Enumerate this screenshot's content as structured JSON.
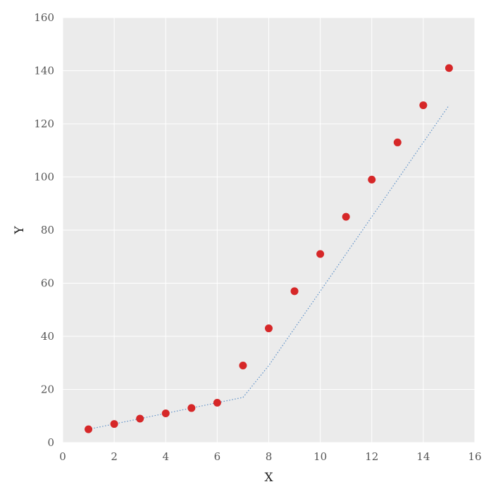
{
  "chart_data": {
    "type": "scatter",
    "title": "",
    "xlabel": "X",
    "ylabel": "Y",
    "xlim": [
      0,
      16
    ],
    "ylim": [
      0,
      160
    ],
    "x_ticks": [
      "0",
      "2",
      "4",
      "6",
      "8",
      "10",
      "12",
      "14",
      "16"
    ],
    "y_ticks": [
      "0",
      "20",
      "40",
      "60",
      "80",
      "100",
      "120",
      "140",
      "160"
    ],
    "grid": true,
    "background_color": "#ebebeb",
    "grid_color": "#ffffff",
    "series": [
      {
        "kind": "scatter",
        "color": "#d62728",
        "x": [
          1,
          2,
          3,
          4,
          5,
          6,
          7,
          8,
          9,
          10,
          11,
          12,
          13,
          14,
          15
        ],
        "y": [
          5,
          7,
          9,
          11,
          13,
          15,
          29,
          43,
          57,
          71,
          85,
          99,
          113,
          127,
          141
        ]
      },
      {
        "kind": "line",
        "style": "dotted",
        "color": "#5b8fc7",
        "x": [
          1,
          2,
          3,
          4,
          5,
          6,
          7,
          8,
          9,
          10,
          11,
          12,
          13,
          14,
          15
        ],
        "y": [
          5,
          7,
          9,
          11,
          13,
          15,
          17,
          29,
          43,
          57,
          71,
          85,
          99,
          113,
          127
        ]
      }
    ]
  }
}
